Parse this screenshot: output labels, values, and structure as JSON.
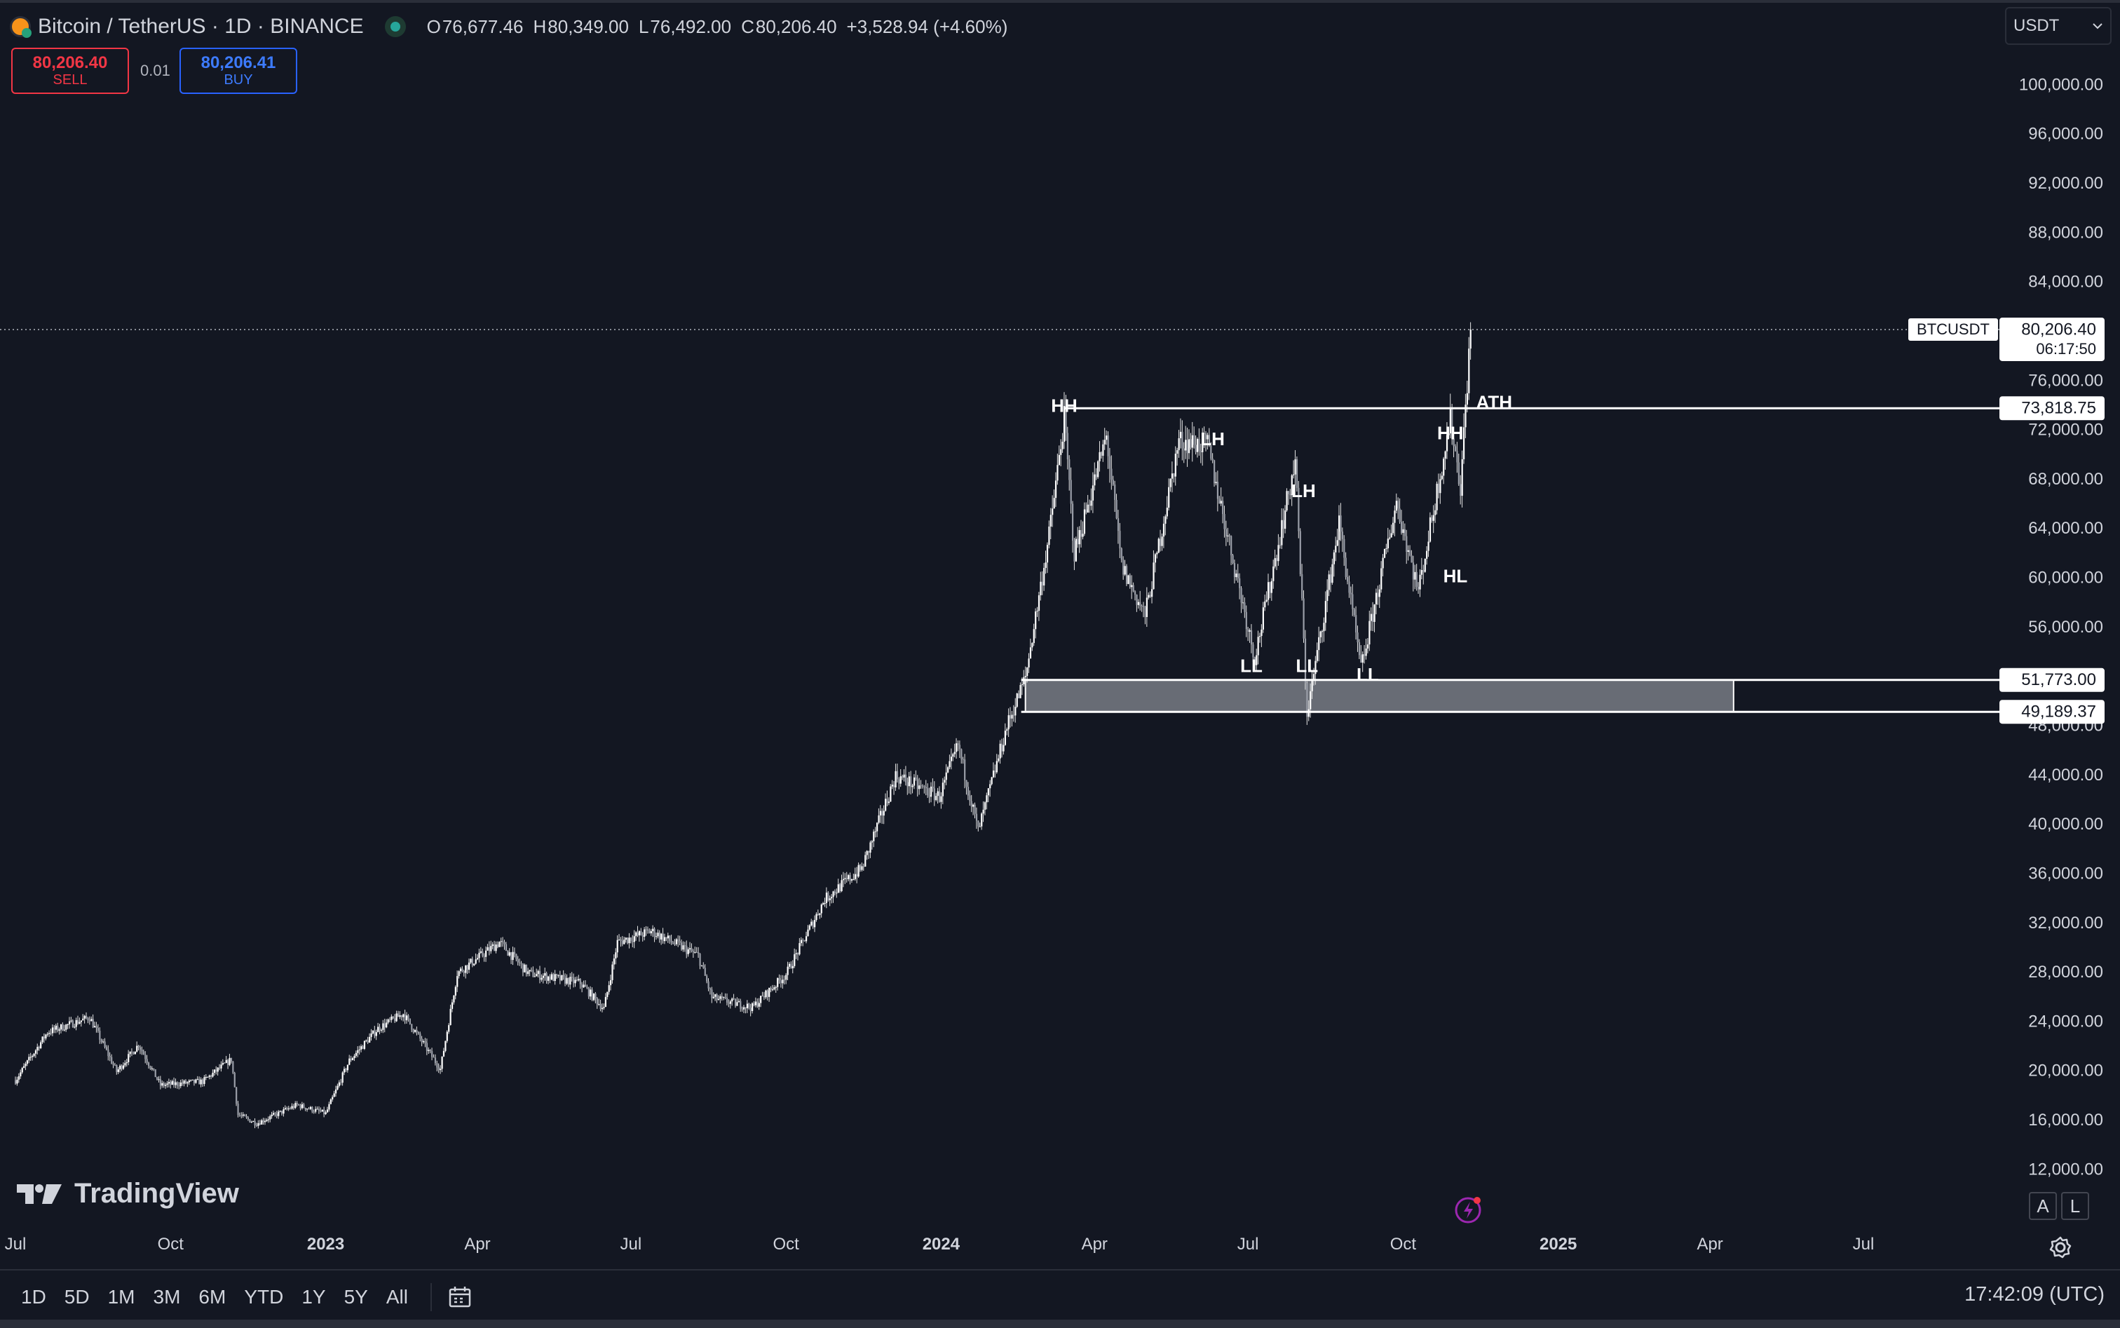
{
  "header": {
    "symbol_title": "Bitcoin / TetherUS · 1D · BINANCE",
    "ohlc": [
      {
        "key": "O",
        "value": "76,677.46"
      },
      {
        "key": "H",
        "value": "80,349.00"
      },
      {
        "key": "L",
        "value": "76,492.00"
      },
      {
        "key": "C",
        "value": "80,206.40"
      }
    ],
    "change": "+3,528.94 (+4.60%)"
  },
  "trade": {
    "sell_price": "80,206.40",
    "sell_label": "SELL",
    "quantity": "0.01",
    "buy_price": "80,206.41",
    "buy_label": "BUY"
  },
  "currency_select": {
    "value": "USDT"
  },
  "colors": {
    "background": "#131722",
    "candles": "#ffffff",
    "sell": "#f23645",
    "buy": "#2962ff",
    "status_dot": "#26a69a",
    "bitcoin": "#f7931a",
    "accent_flash": "#9c27b0"
  },
  "icons": [
    "bitcoin-tether-icon",
    "market-status-dot-icon",
    "chevron-down-icon",
    "tradingview-logo-icon",
    "settings-gear-icon",
    "lightning-alert-icon",
    "calendar-icon"
  ],
  "brand": "TradingView",
  "chart_controls": {
    "auto_label": "A",
    "log_label": "L"
  },
  "bottom_bar": {
    "ranges": [
      "1D",
      "5D",
      "1M",
      "3M",
      "6M",
      "YTD",
      "1Y",
      "5Y",
      "All"
    ],
    "clock": "17:42:09 (UTC)"
  },
  "chart_data": {
    "type": "line",
    "symbol": "BTCUSDT",
    "interval": "1D",
    "xlim": [
      "2022-07-01",
      "2025-08-01"
    ],
    "ylim": [
      9000,
      102500
    ],
    "grid": false,
    "y_ticks": [
      "100,000.00",
      "96,000.00",
      "92,000.00",
      "88,000.00",
      "84,000.00",
      "76,000.00",
      "72,000.00",
      "68,000.00",
      "64,000.00",
      "60,000.00",
      "56,000.00",
      "48,000.00",
      "44,000.00",
      "40,000.00",
      "36,000.00",
      "32,000.00",
      "28,000.00",
      "24,000.00",
      "20,000.00",
      "16,000.00",
      "12,000.00"
    ],
    "y_tick_values": [
      100000,
      96000,
      92000,
      88000,
      84000,
      76000,
      72000,
      68000,
      64000,
      60000,
      56000,
      48000,
      44000,
      40000,
      36000,
      32000,
      28000,
      24000,
      20000,
      16000,
      12000
    ],
    "x_ticks": [
      {
        "label": "Jul",
        "date": "2022-07-01",
        "bold": false
      },
      {
        "label": "Oct",
        "date": "2022-10-01",
        "bold": false
      },
      {
        "label": "2023",
        "date": "2023-01-01",
        "bold": true
      },
      {
        "label": "Apr",
        "date": "2023-04-01",
        "bold": false
      },
      {
        "label": "Jul",
        "date": "2023-07-01",
        "bold": false
      },
      {
        "label": "Oct",
        "date": "2023-10-01",
        "bold": false
      },
      {
        "label": "2024",
        "date": "2024-01-01",
        "bold": true
      },
      {
        "label": "Apr",
        "date": "2024-04-01",
        "bold": false
      },
      {
        "label": "Jul",
        "date": "2024-07-01",
        "bold": false
      },
      {
        "label": "Oct",
        "date": "2024-10-01",
        "bold": false
      },
      {
        "label": "2025",
        "date": "2025-01-01",
        "bold": true
      },
      {
        "label": "Apr",
        "date": "2025-04-01",
        "bold": false
      },
      {
        "label": "Jul",
        "date": "2025-07-01",
        "bold": false
      }
    ],
    "series": [
      {
        "style": "candles",
        "points": [
          {
            "date": "2022-07-01",
            "close": 19300
          },
          {
            "date": "2022-07-20",
            "close": 23200
          },
          {
            "date": "2022-08-14",
            "close": 24400
          },
          {
            "date": "2022-08-30",
            "close": 20000
          },
          {
            "date": "2022-09-12",
            "close": 22200
          },
          {
            "date": "2022-09-25",
            "close": 18900
          },
          {
            "date": "2022-10-20",
            "close": 19200
          },
          {
            "date": "2022-11-06",
            "close": 21000
          },
          {
            "date": "2022-11-10",
            "close": 16500
          },
          {
            "date": "2022-11-21",
            "close": 15800
          },
          {
            "date": "2022-12-15",
            "close": 17300
          },
          {
            "date": "2023-01-01",
            "close": 16600
          },
          {
            "date": "2023-01-15",
            "close": 20900
          },
          {
            "date": "2023-02-01",
            "close": 23500
          },
          {
            "date": "2023-02-16",
            "close": 24700
          },
          {
            "date": "2023-03-10",
            "close": 20200
          },
          {
            "date": "2023-03-20",
            "close": 28000
          },
          {
            "date": "2023-04-14",
            "close": 30500
          },
          {
            "date": "2023-05-01",
            "close": 28000
          },
          {
            "date": "2023-06-01",
            "close": 27200
          },
          {
            "date": "2023-06-15",
            "close": 25100
          },
          {
            "date": "2023-06-23",
            "close": 30500
          },
          {
            "date": "2023-07-13",
            "close": 31400
          },
          {
            "date": "2023-08-10",
            "close": 29400
          },
          {
            "date": "2023-08-18",
            "close": 26000
          },
          {
            "date": "2023-09-11",
            "close": 25200
          },
          {
            "date": "2023-10-01",
            "close": 27900
          },
          {
            "date": "2023-10-24",
            "close": 34000
          },
          {
            "date": "2023-11-15",
            "close": 36500
          },
          {
            "date": "2023-12-05",
            "close": 44000
          },
          {
            "date": "2023-12-31",
            "close": 42300
          },
          {
            "date": "2024-01-11",
            "close": 46500
          },
          {
            "date": "2024-01-23",
            "close": 39500
          },
          {
            "date": "2024-02-09",
            "close": 48000
          },
          {
            "date": "2024-02-20",
            "close": 52000
          },
          {
            "date": "2024-03-05",
            "close": 63500
          },
          {
            "date": "2024-03-14",
            "close": 73000
          },
          {
            "date": "2024-03-20",
            "close": 62000
          },
          {
            "date": "2024-04-08",
            "close": 71500
          },
          {
            "date": "2024-04-17",
            "close": 61000
          },
          {
            "date": "2024-05-01",
            "close": 57000
          },
          {
            "date": "2024-05-21",
            "close": 71200
          },
          {
            "date": "2024-06-07",
            "close": 70800
          },
          {
            "date": "2024-07-05",
            "close": 53600
          },
          {
            "date": "2024-07-29",
            "close": 69500
          },
          {
            "date": "2024-08-05",
            "close": 49000
          },
          {
            "date": "2024-08-24",
            "close": 64500
          },
          {
            "date": "2024-09-06",
            "close": 52600
          },
          {
            "date": "2024-09-27",
            "close": 66200
          },
          {
            "date": "2024-10-10",
            "close": 59000
          },
          {
            "date": "2024-10-29",
            "close": 72900
          },
          {
            "date": "2024-11-04",
            "close": 67500
          },
          {
            "date": "2024-11-10",
            "close": 80206.4
          }
        ]
      }
    ],
    "last_price": {
      "symbol": "BTCUSDT",
      "value": "80,206.40",
      "countdown": "06:17:50",
      "price": 80206.4
    },
    "levels": [
      {
        "label": "73,818.75",
        "value": 73818.75,
        "from_date": "2024-03-14"
      },
      {
        "label": "51,773.00",
        "value": 51773.0,
        "from_date": "2024-02-20"
      },
      {
        "label": "49,189.37",
        "value": 49189.37,
        "from_date": "2024-02-20"
      }
    ],
    "zone": {
      "from_date": "2024-02-20",
      "to_date": "2025-04-15",
      "low": 49189.37,
      "high": 51773.0
    },
    "annotations": [
      {
        "text": "HH",
        "date": "2024-03-14",
        "price": 73900
      },
      {
        "text": "LH",
        "date": "2024-06-10",
        "price": 71200
      },
      {
        "text": "LH",
        "date": "2024-08-03",
        "price": 67000
      },
      {
        "text": "LL",
        "date": "2024-07-03",
        "price": 52800
      },
      {
        "text": "LL",
        "date": "2024-08-05",
        "price": 52800
      },
      {
        "text": "LL",
        "date": "2024-09-10",
        "price": 52100
      },
      {
        "text": "HH",
        "date": "2024-10-29",
        "price": 71700
      },
      {
        "text": "HL",
        "date": "2024-11-01",
        "price": 60100
      },
      {
        "text": "ATH",
        "date": "2024-11-24",
        "price": 74200
      }
    ]
  }
}
